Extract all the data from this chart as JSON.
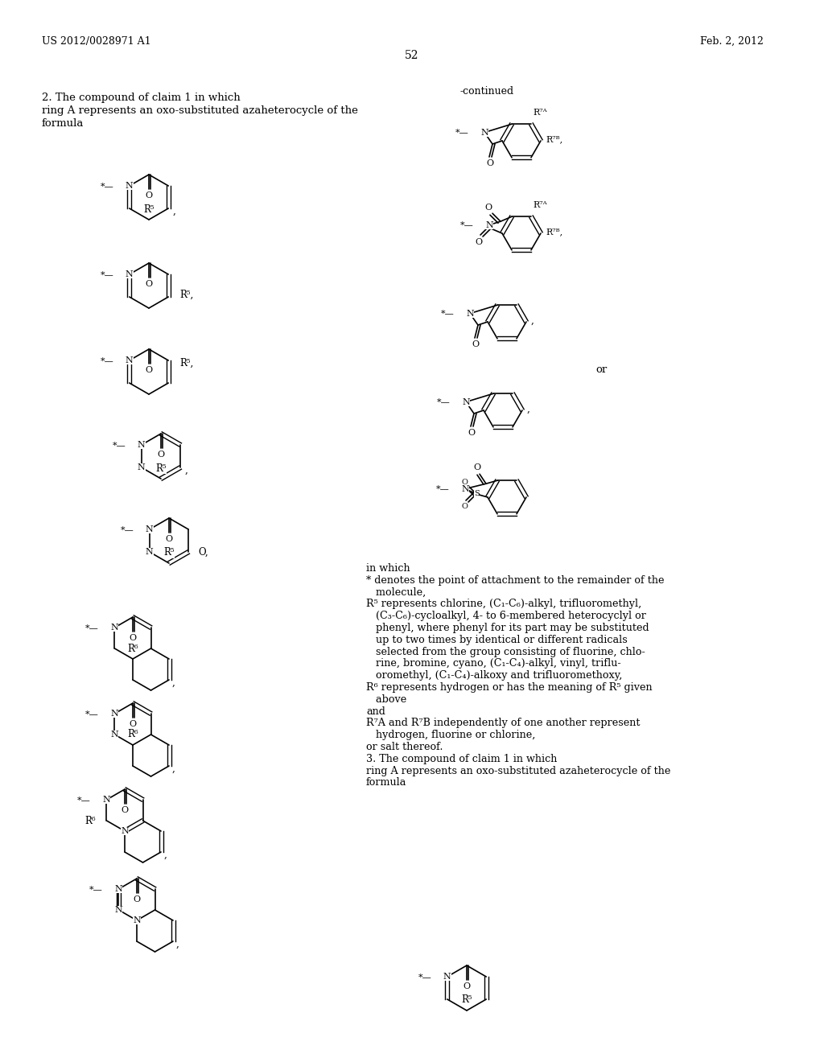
{
  "bg_color": "#ffffff",
  "header_left": "US 2012/0028971 A1",
  "header_right": "Feb. 2, 2012",
  "page_number": "52",
  "continued_label": "-continued",
  "claim2_lines": [
    "2. The compound of claim 1 in which",
    "ring A represents an oxo-substituted azaheterocycle of the",
    "formula"
  ],
  "right_text_lines": [
    "in which",
    "* denotes the point of attachment to the remainder of the",
    "   molecule,",
    "R⁵ represents chlorine, (C₁-C₆)-alkyl, trifluoromethyl,",
    "   (C₃-C₆)-cycloalkyl, 4- to 6-membered heterocyclyl or",
    "   phenyl, where phenyl for its part may be substituted",
    "   up to two times by identical or different radicals",
    "   selected from the group consisting of fluorine, chlo-",
    "   rine, bromine, cyano, (C₁-C₄)-alkyl, vinyl, triflu-",
    "   oromethyl, (C₁-C₄)-alkoxy and trifluoromethoxy,",
    "R⁶ represents hydrogen or has the meaning of R⁵ given",
    "   above",
    "and",
    "R⁷A and R⁷B independently of one another represent",
    "   hydrogen, fluorine or chlorine,",
    "or salt thereof.",
    "3. The compound of claim 1 in which",
    "ring A represents an oxo-substituted azaheterocycle of the",
    "formula"
  ]
}
